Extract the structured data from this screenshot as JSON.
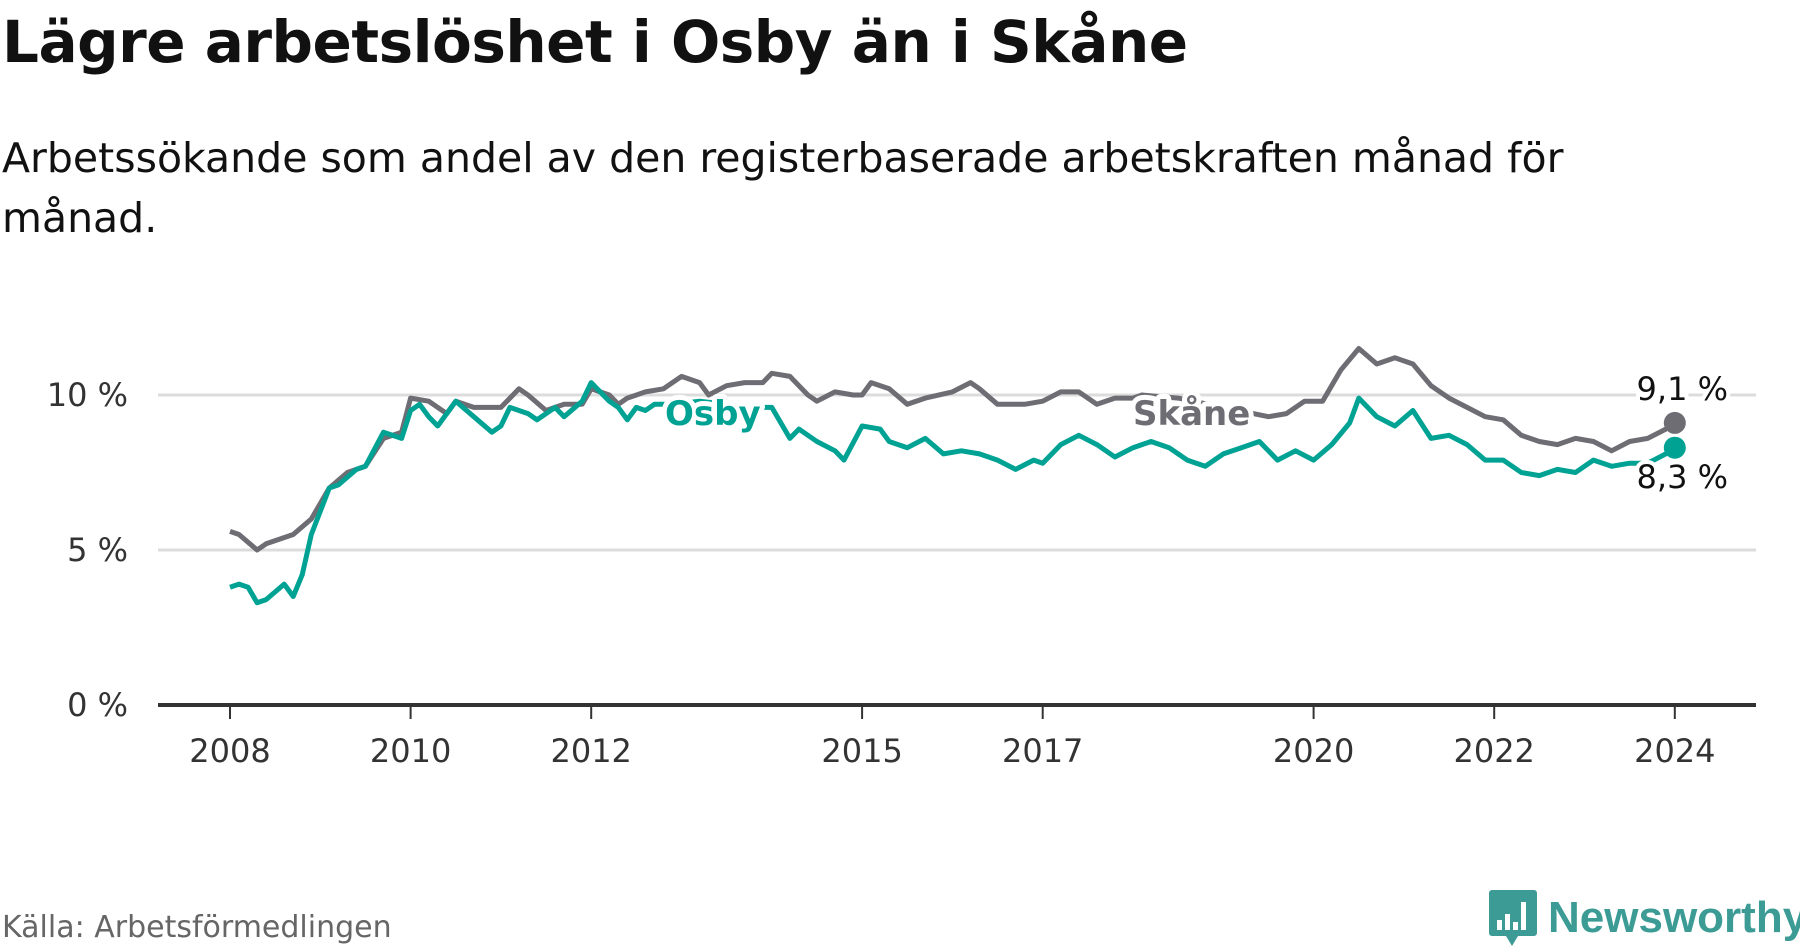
{
  "title": "Lägre arbetslöshet i Osby än i Skåne",
  "subtitle": "Arbetssökande som andel av den registerbaserade arbetskraften månad för månad.",
  "source": "Källa: Arbetsförmedlingen",
  "logo": {
    "text": "Newsworthy",
    "color": "#3c9c95"
  },
  "chart_data": {
    "type": "line",
    "title": "Lägre arbetslöshet i Osby än i Skåne",
    "xlabel": "",
    "ylabel": "",
    "ylim": [
      0,
      12
    ],
    "xlim": [
      2007.6,
      2025.2
    ],
    "yticks": [
      0,
      5,
      10
    ],
    "ytick_labels": [
      "0 %",
      "5 %",
      "10 %"
    ],
    "xticks": [
      2008,
      2010,
      2012,
      2015,
      2017,
      2020,
      2022,
      2024
    ],
    "xtick_labels": [
      "2008",
      "2010",
      "2012",
      "2015",
      "2017",
      "2020",
      "2022",
      "2024"
    ],
    "grid": true,
    "series": [
      {
        "name": "Skåne",
        "color": "#6e6d74",
        "end_label": "9,1 %",
        "x": [
          2008.0,
          2008.1,
          2008.3,
          2008.4,
          2008.7,
          2008.9,
          2009.1,
          2009.3,
          2009.5,
          2009.7,
          2009.9,
          2010.0,
          2010.2,
          2010.4,
          2010.5,
          2010.7,
          2010.9,
          2011.0,
          2011.2,
          2011.3,
          2011.5,
          2011.7,
          2011.9,
          2012.0,
          2012.2,
          2012.3,
          2012.4,
          2012.6,
          2012.8,
          2013.0,
          2013.2,
          2013.3,
          2013.5,
          2013.7,
          2013.9,
          2014.0,
          2014.2,
          2014.4,
          2014.5,
          2014.7,
          2014.9,
          2015.0,
          2015.1,
          2015.3,
          2015.5,
          2015.7,
          2016.0,
          2016.2,
          2016.3,
          2016.5,
          2016.8,
          2017.0,
          2017.2,
          2017.4,
          2017.6,
          2017.8,
          2018.0,
          2018.1,
          2018.5,
          2019.0,
          2019.5,
          2019.7,
          2019.9,
          2020.1,
          2020.3,
          2020.5,
          2020.7,
          2020.9,
          2021.1,
          2021.3,
          2021.5,
          2021.7,
          2021.9,
          2022.1,
          2022.3,
          2022.5,
          2022.7,
          2022.9,
          2023.1,
          2023.3,
          2023.5,
          2023.7,
          2023.9,
          2024.0
        ],
        "y": [
          5.6,
          5.5,
          5.0,
          5.2,
          5.5,
          6.0,
          7.0,
          7.5,
          7.7,
          8.6,
          8.8,
          9.9,
          9.8,
          9.4,
          9.8,
          9.6,
          9.6,
          9.6,
          10.2,
          10.0,
          9.5,
          9.7,
          9.7,
          10.2,
          10.0,
          9.7,
          9.9,
          10.1,
          10.2,
          10.6,
          10.4,
          10.0,
          10.3,
          10.4,
          10.4,
          10.7,
          10.6,
          10.0,
          9.8,
          10.1,
          10.0,
          10.0,
          10.4,
          10.2,
          9.7,
          9.9,
          10.1,
          10.4,
          10.2,
          9.7,
          9.7,
          9.8,
          10.1,
          10.1,
          9.7,
          9.9,
          9.9,
          10.0,
          9.9,
          9.6,
          9.3,
          9.4,
          9.8,
          9.8,
          10.8,
          11.5,
          11.0,
          11.2,
          11.0,
          10.3,
          9.9,
          9.6,
          9.3,
          9.2,
          8.7,
          8.5,
          8.4,
          8.6,
          8.5,
          8.2,
          8.5,
          8.6,
          8.9,
          9.1
        ]
      },
      {
        "name": "Osby",
        "color": "#00a294",
        "end_label": "8,3 %",
        "x": [
          2008.0,
          2008.1,
          2008.2,
          2008.3,
          2008.4,
          2008.6,
          2008.7,
          2008.8,
          2008.9,
          2009.1,
          2009.2,
          2009.4,
          2009.5,
          2009.7,
          2009.9,
          2010.0,
          2010.1,
          2010.2,
          2010.3,
          2010.5,
          2010.7,
          2010.9,
          2011.0,
          2011.1,
          2011.3,
          2011.4,
          2011.6,
          2011.7,
          2011.9,
          2012.0,
          2012.2,
          2012.3,
          2012.4,
          2012.5,
          2012.6,
          2012.7,
          2012.9,
          2013.2,
          2013.5,
          2013.8,
          2014.0,
          2014.2,
          2014.3,
          2014.5,
          2014.7,
          2014.8,
          2015.0,
          2015.2,
          2015.3,
          2015.5,
          2015.7,
          2015.9,
          2016.1,
          2016.3,
          2016.5,
          2016.7,
          2016.9,
          2017.0,
          2017.2,
          2017.4,
          2017.6,
          2017.8,
          2018.0,
          2018.2,
          2018.4,
          2018.6,
          2018.8,
          2019.0,
          2019.2,
          2019.4,
          2019.6,
          2019.8,
          2020.0,
          2020.2,
          2020.4,
          2020.5,
          2020.7,
          2020.9,
          2021.1,
          2021.3,
          2021.5,
          2021.7,
          2021.9,
          2022.1,
          2022.3,
          2022.5,
          2022.7,
          2022.9,
          2023.1,
          2023.3,
          2023.5,
          2023.7,
          2023.9,
          2024.0
        ],
        "y": [
          3.8,
          3.9,
          3.8,
          3.3,
          3.4,
          3.9,
          3.5,
          4.2,
          5.5,
          7.0,
          7.1,
          7.6,
          7.7,
          8.8,
          8.6,
          9.5,
          9.7,
          9.3,
          9.0,
          9.8,
          9.3,
          8.8,
          9.0,
          9.6,
          9.4,
          9.2,
          9.6,
          9.3,
          9.8,
          10.4,
          9.8,
          9.6,
          9.2,
          9.6,
          9.5,
          9.7,
          9.7,
          9.8,
          9.7,
          9.6,
          9.6,
          8.6,
          8.9,
          8.5,
          8.2,
          7.9,
          9.0,
          8.9,
          8.5,
          8.3,
          8.6,
          8.1,
          8.2,
          8.1,
          7.9,
          7.6,
          7.9,
          7.8,
          8.4,
          8.7,
          8.4,
          8.0,
          8.3,
          8.5,
          8.3,
          7.9,
          7.7,
          8.1,
          8.3,
          8.5,
          7.9,
          8.2,
          7.9,
          8.4,
          9.1,
          9.9,
          9.3,
          9.0,
          9.5,
          8.6,
          8.7,
          8.4,
          7.9,
          7.9,
          7.5,
          7.4,
          7.6,
          7.5,
          7.9,
          7.7,
          7.8,
          7.8,
          8.1,
          8.3
        ]
      }
    ]
  }
}
